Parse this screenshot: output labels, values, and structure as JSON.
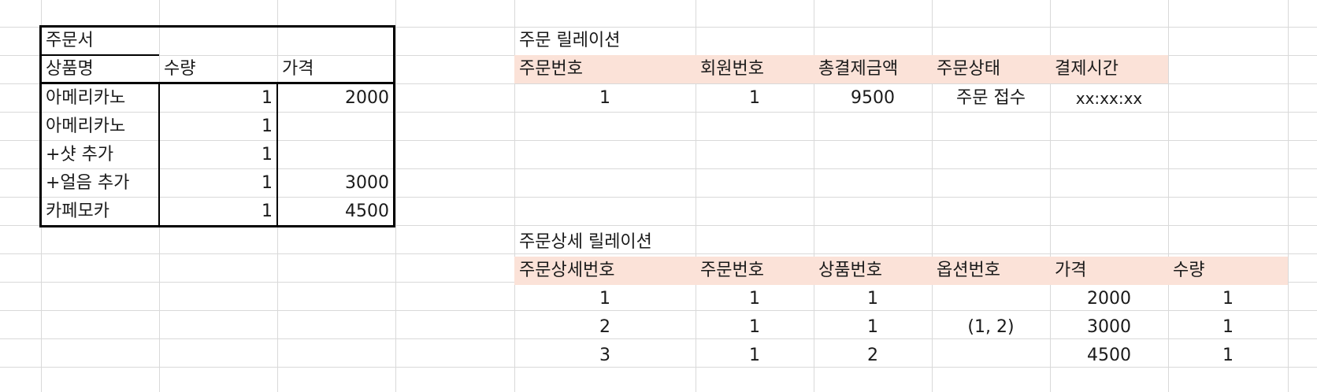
{
  "colors": {
    "gridline": "#d9d9d9",
    "header_fill": "#fbe2d8",
    "order_form_border": "#000000"
  },
  "order_form": {
    "title": "주문서",
    "headers": [
      "상품명",
      "수량",
      "가격"
    ],
    "rows": [
      {
        "name": "아메리카노",
        "qty": "1",
        "price": "2000"
      },
      {
        "name": "아메리카노",
        "qty": "1",
        "price": ""
      },
      {
        "name": "+샷 추가",
        "qty": "1",
        "price": ""
      },
      {
        "name": "+얼음 추가",
        "qty": "1",
        "price": "3000"
      },
      {
        "name": "카페모카",
        "qty": "1",
        "price": "4500"
      }
    ]
  },
  "order_relation": {
    "title": "주문 릴레이션",
    "headers": [
      "주문번호",
      "회원번호",
      "총결제금액",
      "주문상태",
      "결제시간"
    ],
    "rows": [
      [
        "1",
        "1",
        "9500",
        "주문 접수",
        "xx:xx:xx"
      ]
    ]
  },
  "order_detail_relation": {
    "title": "주문상세 릴레이션",
    "headers": [
      "주문상세번호",
      "주문번호",
      "상품번호",
      "옵션번호",
      "가격",
      "수량"
    ],
    "rows": [
      [
        "1",
        "1",
        "1",
        "",
        "2000",
        "1"
      ],
      [
        "2",
        "1",
        "1",
        "(1, 2)",
        "3000",
        "1"
      ],
      [
        "3",
        "1",
        "2",
        "",
        "4500",
        "1"
      ]
    ]
  }
}
